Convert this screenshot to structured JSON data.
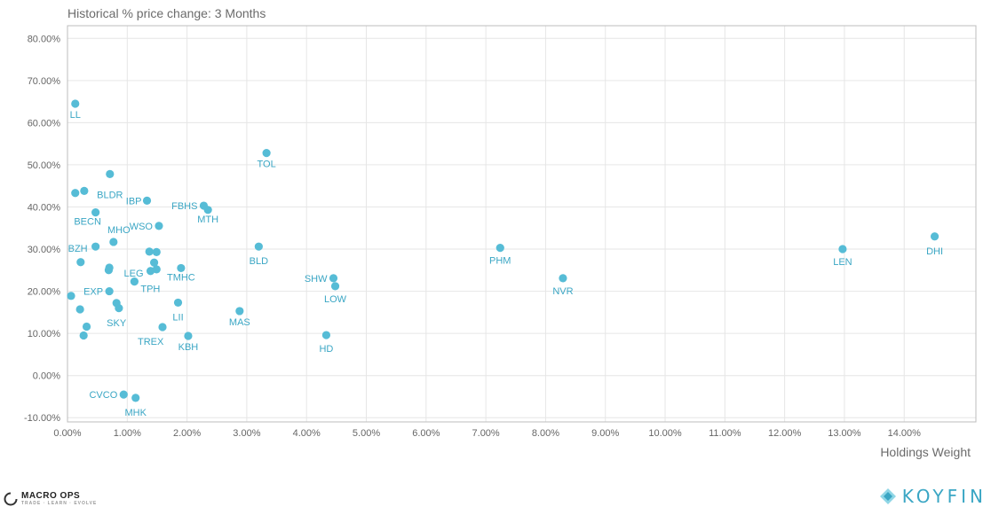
{
  "chart_data": {
    "type": "scatter",
    "title": "Historical % price change: 3 Months",
    "xlabel": "Holdings Weight",
    "ylabel": "",
    "xlim": [
      0,
      15.2
    ],
    "ylim": [
      -11,
      83
    ],
    "x_ticks": [
      0,
      1,
      2,
      3,
      4,
      5,
      6,
      7,
      8,
      9,
      10,
      11,
      12,
      13,
      14
    ],
    "y_ticks": [
      -10,
      0,
      10,
      20,
      30,
      40,
      50,
      60,
      70,
      80
    ],
    "grid": true,
    "points": [
      {
        "label": "LL",
        "x": 0.13,
        "y": 64.5
      },
      {
        "label": "",
        "x": 0.13,
        "y": 43.3
      },
      {
        "label": "",
        "x": 0.28,
        "y": 43.8
      },
      {
        "label": "BLDR",
        "x": 0.71,
        "y": 47.8
      },
      {
        "label": "BECN",
        "x": 0.47,
        "y": 38.7
      },
      {
        "label": "IBP",
        "x": 1.33,
        "y": 41.5
      },
      {
        "label": "FBHS",
        "x": 2.28,
        "y": 40.3
      },
      {
        "label": "MTH",
        "x": 2.35,
        "y": 39.3
      },
      {
        "label": "TOL",
        "x": 3.33,
        "y": 52.8
      },
      {
        "label": "WSO",
        "x": 1.53,
        "y": 35.5
      },
      {
        "label": "MHO",
        "x": 0.77,
        "y": 31.7
      },
      {
        "label": "BZH",
        "x": 0.47,
        "y": 30.6
      },
      {
        "label": "",
        "x": 0.22,
        "y": 26.9
      },
      {
        "label": "",
        "x": 0.7,
        "y": 25.6
      },
      {
        "label": "",
        "x": 0.69,
        "y": 25.0
      },
      {
        "label": "",
        "x": 1.37,
        "y": 29.4
      },
      {
        "label": "",
        "x": 1.49,
        "y": 29.3
      },
      {
        "label": "",
        "x": 1.45,
        "y": 26.8
      },
      {
        "label": "LEG",
        "x": 1.39,
        "y": 24.8
      },
      {
        "label": "",
        "x": 1.49,
        "y": 25.2
      },
      {
        "label": "TMHC",
        "x": 1.9,
        "y": 25.5
      },
      {
        "label": "TPH",
        "x": 1.12,
        "y": 22.3
      },
      {
        "label": "BLD",
        "x": 3.2,
        "y": 30.6
      },
      {
        "label": "EXP",
        "x": 0.7,
        "y": 20.0
      },
      {
        "label": "",
        "x": 0.06,
        "y": 18.9
      },
      {
        "label": "",
        "x": 0.21,
        "y": 15.7
      },
      {
        "label": "SKY",
        "x": 0.82,
        "y": 17.2
      },
      {
        "label": "",
        "x": 0.86,
        "y": 16.0
      },
      {
        "label": "LII",
        "x": 1.85,
        "y": 17.3
      },
      {
        "label": "",
        "x": 0.32,
        "y": 11.6
      },
      {
        "label": "",
        "x": 0.27,
        "y": 9.5
      },
      {
        "label": "TREX",
        "x": 1.59,
        "y": 11.5
      },
      {
        "label": "KBH",
        "x": 2.02,
        "y": 9.4
      },
      {
        "label": "MAS",
        "x": 2.88,
        "y": 15.3
      },
      {
        "label": "SHW",
        "x": 4.45,
        "y": 23.1
      },
      {
        "label": "LOW",
        "x": 4.48,
        "y": 21.2
      },
      {
        "label": "HD",
        "x": 4.33,
        "y": 9.6
      },
      {
        "label": "PHM",
        "x": 7.24,
        "y": 30.3
      },
      {
        "label": "NVR",
        "x": 8.29,
        "y": 23.1
      },
      {
        "label": "LEN",
        "x": 12.97,
        "y": 30.0
      },
      {
        "label": "DHI",
        "x": 14.51,
        "y": 33.0
      },
      {
        "label": "CVCO",
        "x": 0.94,
        "y": -4.5
      },
      {
        "label": "MHK",
        "x": 1.14,
        "y": -5.3
      }
    ]
  },
  "footer": {
    "left_brand": "MACRO OPS",
    "left_tagline": "TRADE · LEARN · EVOLVE",
    "right_brand": "KOYFIN"
  },
  "colors": {
    "point": "#56bcd6",
    "label": "#3aa6c4",
    "grid": "#e6e6e6",
    "axis": "#bdbdbd"
  }
}
